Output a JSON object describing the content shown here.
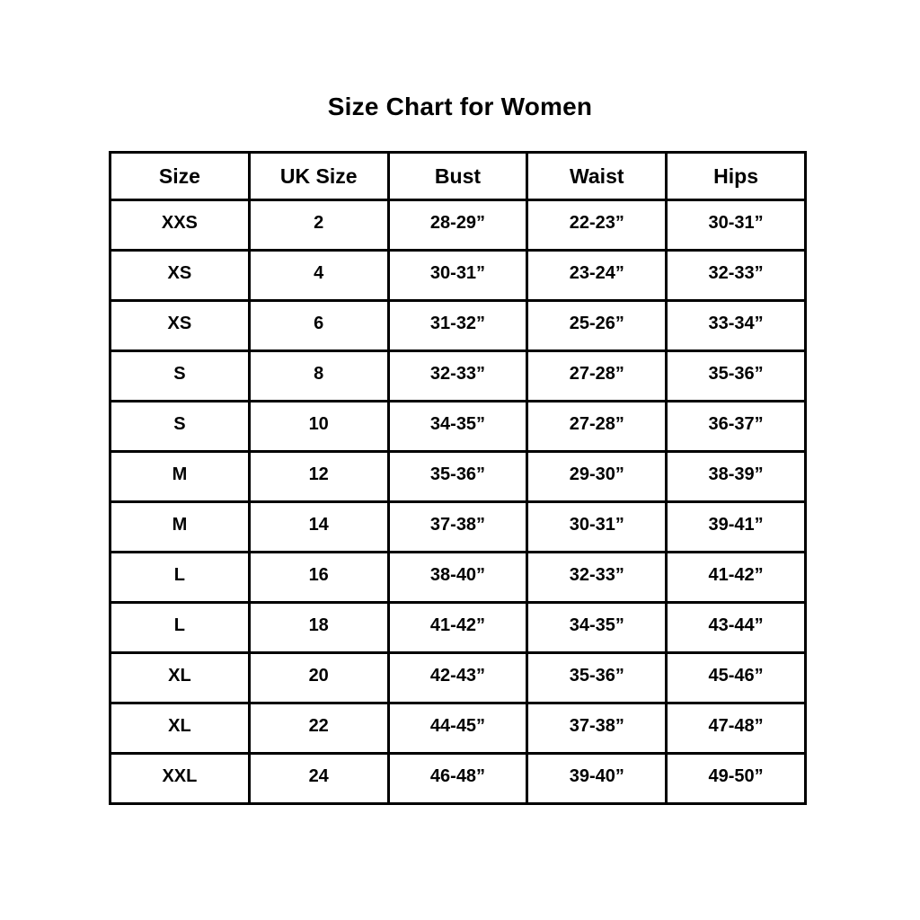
{
  "page": {
    "title": "Size Chart for Women"
  },
  "chart_data": {
    "type": "table",
    "title": "Size Chart for Women",
    "columns": [
      "Size",
      "UK Size",
      "Bust",
      "Waist",
      "Hips"
    ],
    "rows": [
      [
        "XXS",
        "2",
        "28-29”",
        "22-23”",
        "30-31”"
      ],
      [
        "XS",
        "4",
        "30-31”",
        "23-24”",
        "32-33”"
      ],
      [
        "XS",
        "6",
        "31-32”",
        "25-26”",
        "33-34”"
      ],
      [
        "S",
        "8",
        "32-33”",
        "27-28”",
        "35-36”"
      ],
      [
        "S",
        "10",
        "34-35”",
        "27-28”",
        "36-37”"
      ],
      [
        "M",
        "12",
        "35-36”",
        "29-30”",
        "38-39”"
      ],
      [
        "M",
        "14",
        "37-38”",
        "30-31”",
        "39-41”"
      ],
      [
        "L",
        "16",
        "38-40”",
        "32-33”",
        "41-42”"
      ],
      [
        "L",
        "18",
        "41-42”",
        "34-35”",
        "43-44”"
      ],
      [
        "XL",
        "20",
        "42-43”",
        "35-36”",
        "45-46”"
      ],
      [
        "XL",
        "22",
        "44-45”",
        "37-38”",
        "47-48”"
      ],
      [
        "XXL",
        "24",
        "46-48”",
        "39-40”",
        "49-50”"
      ]
    ],
    "layout": {
      "legend": "none",
      "grid": "full-borders"
    },
    "colors": {
      "border": "#000000",
      "background": "#ffffff",
      "text": "#000000"
    }
  }
}
